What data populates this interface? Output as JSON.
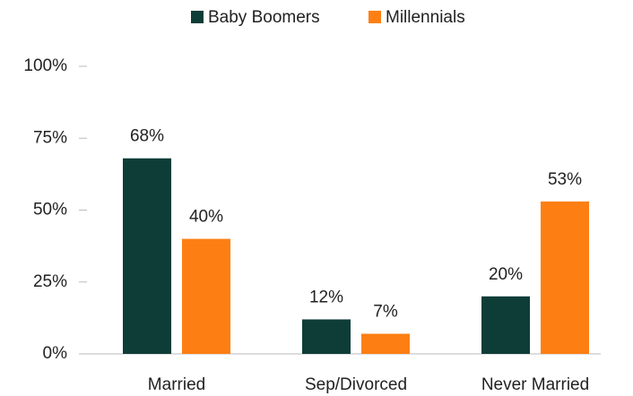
{
  "chart_data": {
    "type": "bar",
    "categories": [
      "Married",
      "Sep/Divorced",
      "Never Married"
    ],
    "series": [
      {
        "name": "Baby Boomers",
        "color": "#0e3d38",
        "values": [
          68,
          12,
          20
        ],
        "value_labels": [
          "68%",
          "12%",
          "20%"
        ]
      },
      {
        "name": "Millennials",
        "color": "#fd7f13",
        "values": [
          40,
          7,
          53
        ],
        "value_labels": [
          "40%",
          "7%",
          "53%"
        ]
      }
    ],
    "ylim": [
      0,
      100
    ],
    "yticks": [
      {
        "value": 0,
        "label": "0%"
      },
      {
        "value": 25,
        "label": "25%"
      },
      {
        "value": 50,
        "label": "50%"
      },
      {
        "value": 75,
        "label": "75%"
      },
      {
        "value": 100,
        "label": "100%"
      }
    ],
    "legend": "top"
  }
}
